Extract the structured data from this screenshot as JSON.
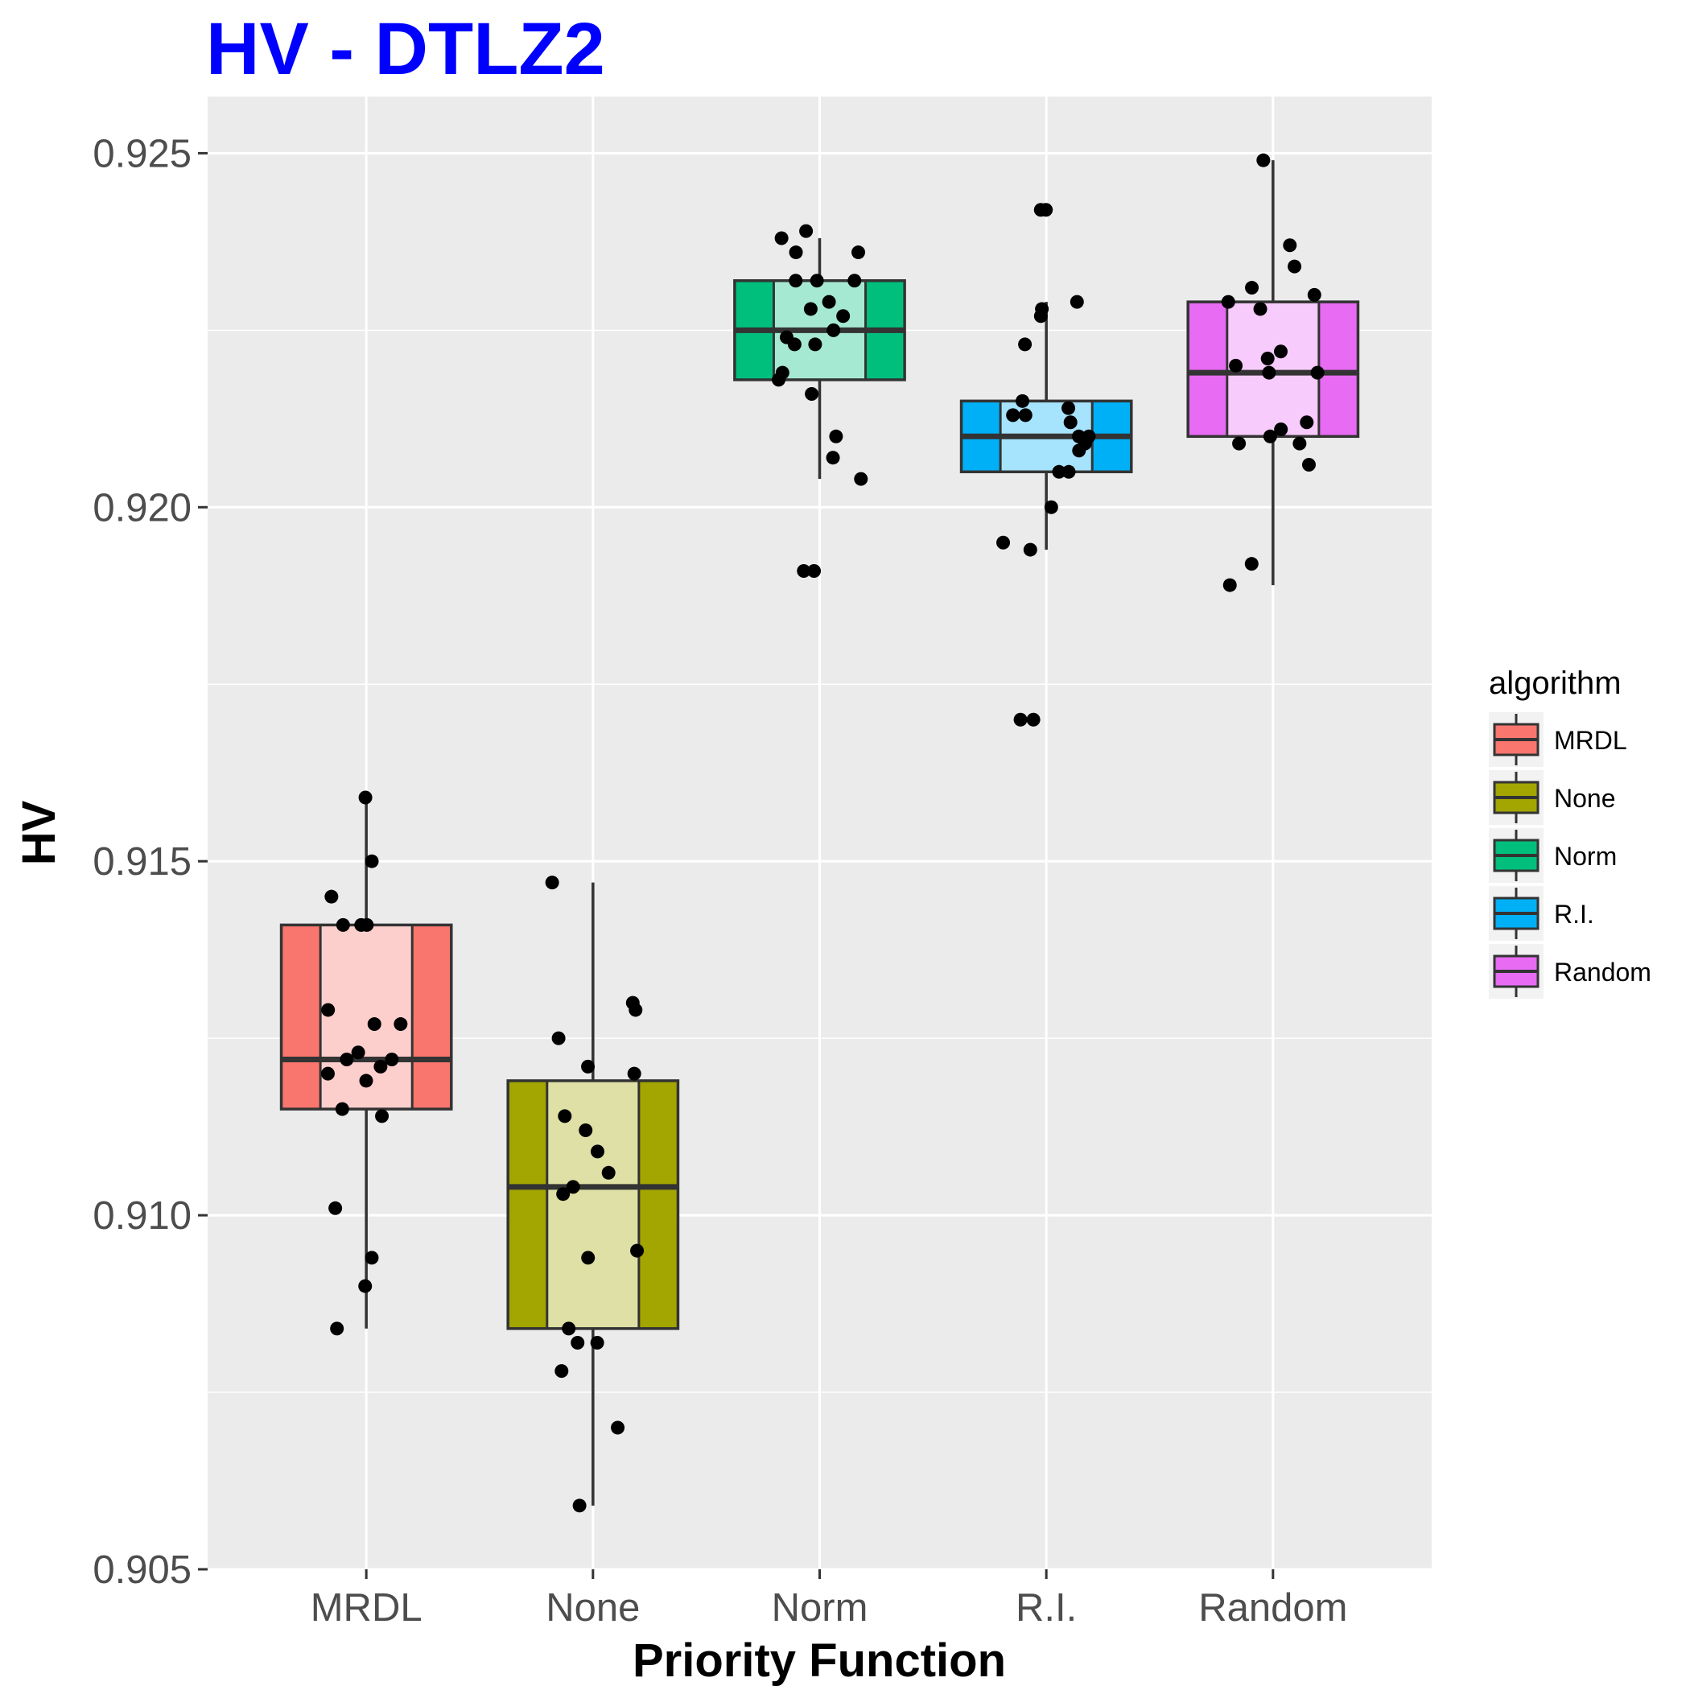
{
  "chart_data": {
    "type": "boxplot",
    "title": "HV - DTLZ2",
    "title_color": "#0000ff",
    "xlabel": "Priority Function",
    "ylabel": "HV",
    "ylim": [
      0.905,
      0.9258
    ],
    "yticks": [
      0.905,
      0.91,
      0.915,
      0.92,
      0.925
    ],
    "ytick_labels": [
      "0.905",
      "0.910",
      "0.915",
      "0.920",
      "0.925"
    ],
    "grid": true,
    "legend": {
      "title": "algorithm",
      "position": "right"
    },
    "categories": [
      "MRDL",
      "None",
      "Norm",
      "R.I.",
      "Random"
    ],
    "colors": [
      "#f8766d",
      "#a3a500",
      "#00bf7d",
      "#00b0f6",
      "#e76bf3"
    ],
    "boxes": [
      {
        "q1": 0.9115,
        "median": 0.9122,
        "q3": 0.9141,
        "whisker_low": 0.9084,
        "whisker_high": 0.9159
      },
      {
        "q1": 0.9084,
        "median": 0.9104,
        "q3": 0.9119,
        "whisker_low": 0.9059,
        "whisker_high": 0.9147
      },
      {
        "q1": 0.9218,
        "median": 0.9225,
        "q3": 0.9232,
        "whisker_low": 0.9204,
        "whisker_high": 0.9238
      },
      {
        "q1": 0.9205,
        "median": 0.921,
        "q3": 0.9215,
        "whisker_low": 0.9194,
        "whisker_high": 0.9229
      },
      {
        "q1": 0.921,
        "median": 0.9219,
        "q3": 0.9229,
        "whisker_low": 0.9189,
        "whisker_high": 0.9249
      }
    ],
    "points": [
      [
        0.9159,
        0.915,
        0.9145,
        0.9141,
        0.9141,
        0.9141,
        0.9129,
        0.9127,
        0.9127,
        0.9123,
        0.9122,
        0.9122,
        0.9121,
        0.912,
        0.9119,
        0.9115,
        0.9114,
        0.9101,
        0.9094,
        0.909,
        0.9084
      ],
      [
        0.9147,
        0.913,
        0.9129,
        0.9125,
        0.9121,
        0.912,
        0.9114,
        0.9112,
        0.9109,
        0.9106,
        0.9104,
        0.9103,
        0.9095,
        0.9094,
        0.9084,
        0.9082,
        0.9082,
        0.9078,
        0.907,
        0.9059
      ],
      [
        0.9239,
        0.9238,
        0.9236,
        0.9236,
        0.9232,
        0.9232,
        0.9232,
        0.9229,
        0.9228,
        0.9227,
        0.9225,
        0.9224,
        0.9223,
        0.9223,
        0.9219,
        0.9218,
        0.9216,
        0.921,
        0.9207,
        0.9204,
        0.9191,
        0.9191
      ],
      [
        0.9242,
        0.9242,
        0.9229,
        0.9228,
        0.9227,
        0.9223,
        0.9215,
        0.9214,
        0.9213,
        0.9213,
        0.9212,
        0.921,
        0.921,
        0.9209,
        0.9208,
        0.9205,
        0.9205,
        0.92,
        0.9195,
        0.9194,
        0.917,
        0.917
      ],
      [
        0.9249,
        0.9237,
        0.9234,
        0.9231,
        0.923,
        0.9229,
        0.9228,
        0.9222,
        0.9221,
        0.922,
        0.9219,
        0.9219,
        0.9212,
        0.9211,
        0.921,
        0.9209,
        0.9209,
        0.9206,
        0.9192,
        0.9189
      ]
    ]
  }
}
